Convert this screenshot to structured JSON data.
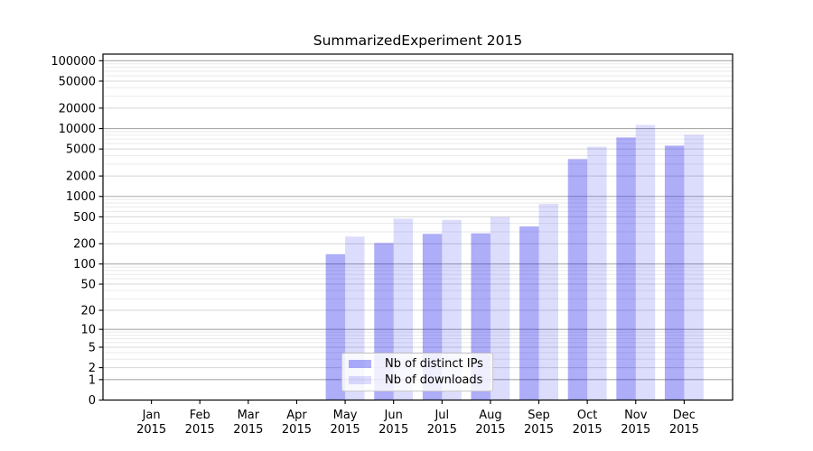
{
  "chart_data": {
    "type": "bar",
    "title": "SummarizedExperiment 2015",
    "x_months": [
      "Jan",
      "Feb",
      "Mar",
      "Apr",
      "May",
      "Jun",
      "Jul",
      "Aug",
      "Sep",
      "Oct",
      "Nov",
      "Dec"
    ],
    "x_year": "2015",
    "y_ticks": [
      0,
      1,
      2,
      5,
      10,
      20,
      50,
      100,
      200,
      500,
      1000,
      2000,
      5000,
      10000,
      20000,
      50000,
      100000
    ],
    "y_scale": "log1p",
    "ylim": [
      0,
      125000
    ],
    "grid": {
      "horizontal": true,
      "minor_log_lines": true,
      "vertical": false
    },
    "legend": {
      "position": "lower-center-inside"
    },
    "colors": {
      "bar_distinct_ips": "rgba(20,20,235,0.35)",
      "bar_downloads": "rgba(20,20,235,0.15)",
      "grid_major": "#a9a9a9",
      "grid_mid": "#d4d4d4",
      "grid_minor": "#eaeaea",
      "spine": "#000000"
    },
    "series": [
      {
        "name": "Nb of distinct IPs",
        "color": "rgba(20,20,235,0.35)",
        "values": [
          0,
          0,
          0,
          0,
          140,
          205,
          280,
          285,
          360,
          3550,
          7400,
          5600
        ]
      },
      {
        "name": "Nb of downloads",
        "color": "rgba(20,20,235,0.15)",
        "values": [
          0,
          0,
          0,
          0,
          255,
          470,
          450,
          495,
          775,
          5400,
          11300,
          8100
        ]
      }
    ]
  }
}
